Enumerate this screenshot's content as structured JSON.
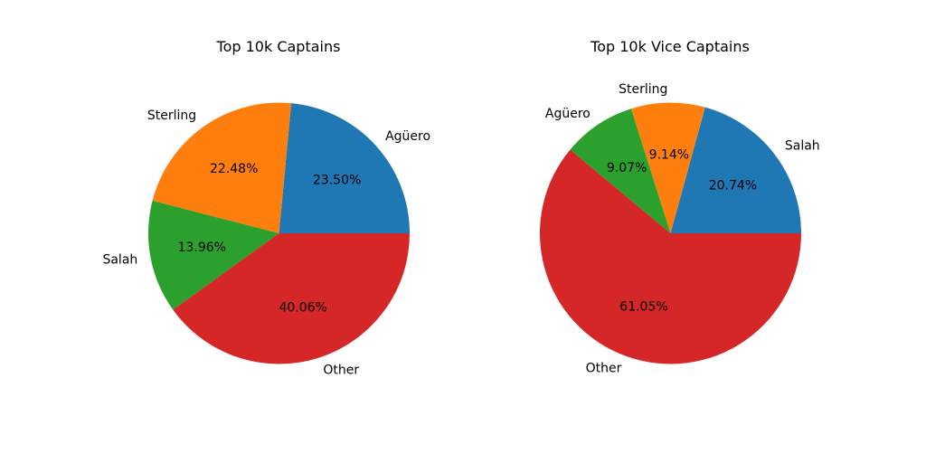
{
  "chart_data": [
    {
      "type": "pie",
      "title": "Top 10k Captains",
      "slices": [
        {
          "label": "Agüero",
          "value": 23.5,
          "pct_text": "23.50%",
          "color": "#1f77b4"
        },
        {
          "label": "Sterling",
          "value": 22.48,
          "pct_text": "22.48%",
          "color": "#ff7f0e"
        },
        {
          "label": "Salah",
          "value": 13.96,
          "pct_text": "13.96%",
          "color": "#2ca02c"
        },
        {
          "label": "Other",
          "value": 40.06,
          "pct_text": "40.06%",
          "color": "#d62728"
        }
      ]
    },
    {
      "type": "pie",
      "title": "Top 10k Vice Captains",
      "slices": [
        {
          "label": "Salah",
          "value": 20.74,
          "pct_text": "20.74%",
          "color": "#1f77b4"
        },
        {
          "label": "Sterling",
          "value": 9.14,
          "pct_text": "9.14%",
          "color": "#ff7f0e"
        },
        {
          "label": "Agüero",
          "value": 9.07,
          "pct_text": "9.07%",
          "color": "#2ca02c"
        },
        {
          "label": "Other",
          "value": 61.05,
          "pct_text": "61.05%",
          "color": "#d62728"
        }
      ]
    }
  ]
}
